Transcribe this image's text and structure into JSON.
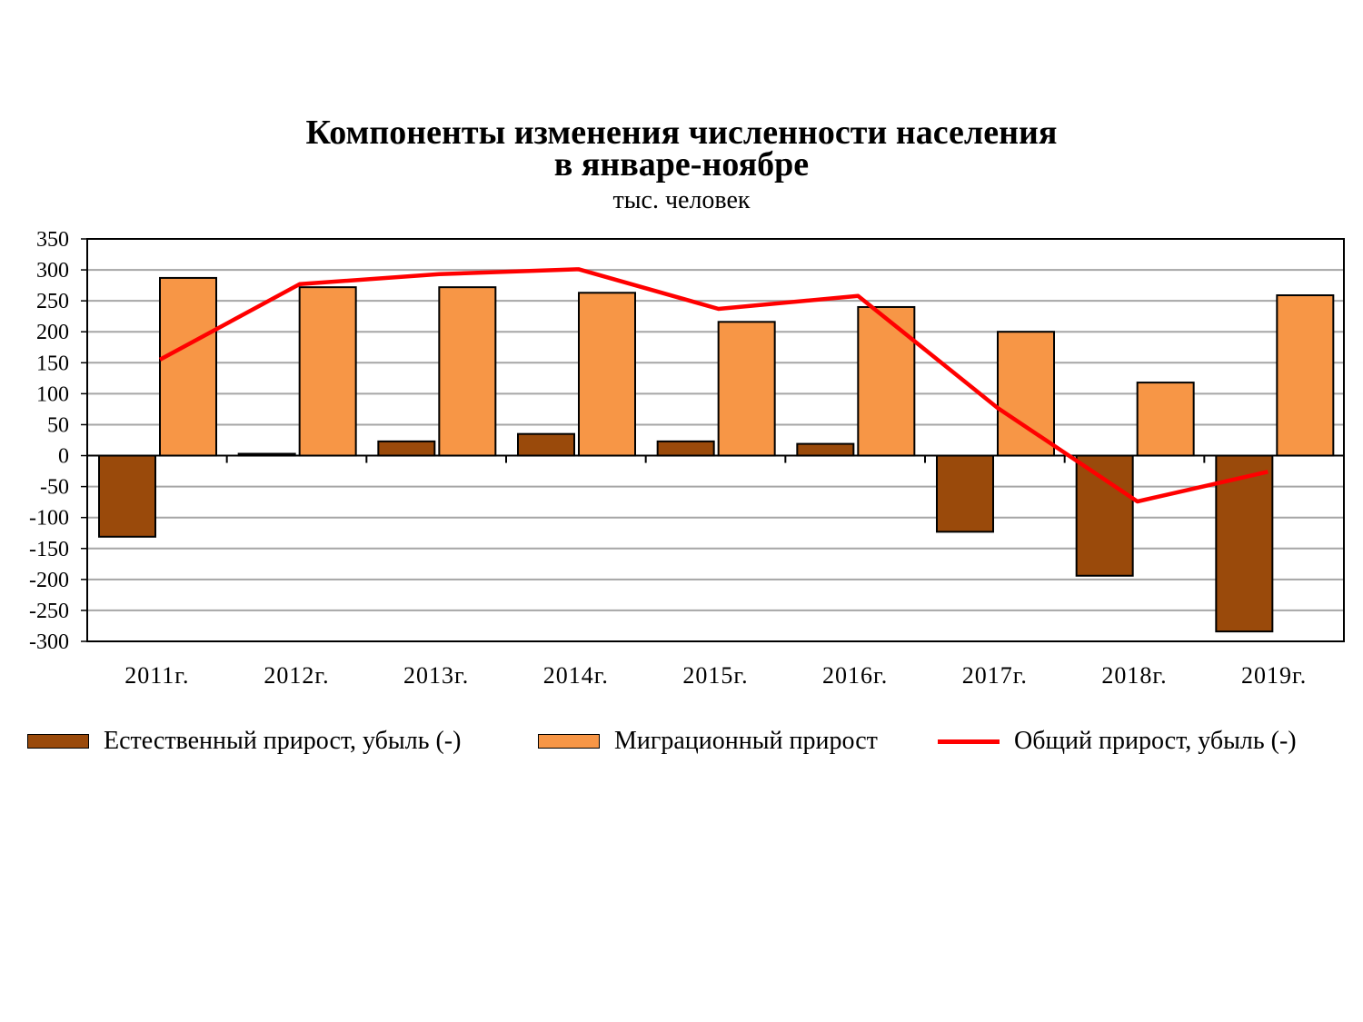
{
  "chart_data": {
    "type": "bar",
    "title": "Компоненты изменения численности населения",
    "title_line2": "в январе-ноябре",
    "subtitle": "тыс. человек",
    "categories": [
      "2011г.",
      "2012г.",
      "2013г.",
      "2014г.",
      "2015г.",
      "2016г.",
      "2017г.",
      "2018г.",
      "2019г."
    ],
    "series": [
      {
        "name": "Естественный прирост, убыль (-)",
        "type": "bar",
        "color": "#9A4A0B",
        "values": [
          -131,
          3,
          23,
          35,
          23,
          19,
          -123,
          -194,
          -284
        ]
      },
      {
        "name": "Миграционный прирост",
        "type": "bar",
        "color": "#F79646",
        "values": [
          287,
          272,
          272,
          263,
          216,
          240,
          200,
          118,
          259
        ]
      },
      {
        "name": "Общий прирост, убыль (-)",
        "type": "line",
        "color": "#FF0000",
        "values": [
          155,
          277,
          293,
          301,
          237,
          258,
          77,
          -74,
          -26
        ]
      }
    ],
    "ylim": [
      -300,
      350
    ],
    "yticks": [
      350,
      300,
      250,
      200,
      150,
      100,
      50,
      0,
      -50,
      -100,
      -150,
      -200,
      -250,
      -300
    ],
    "grid": true,
    "legend_position": "bottom",
    "plot_background": "#FFFFFF",
    "grid_color": "#A6A6A6"
  }
}
